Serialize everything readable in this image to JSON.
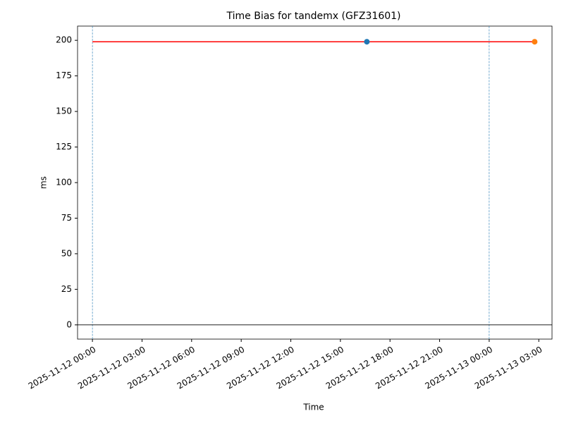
{
  "chart_data": {
    "type": "line",
    "title": "Time Bias for tandemx (GFZ31601)",
    "x_label": "Time",
    "y_label": "ms",
    "series": [
      {
        "color": "#ff0000",
        "marker": false,
        "x": [
          "2025-11-12 00:00",
          "2025-11-13 02:45"
        ],
        "values": [
          199,
          199
        ]
      },
      {
        "color": "#1f77b4",
        "marker": true,
        "x": [
          "2025-11-12 16:36"
        ],
        "values": [
          199
        ]
      },
      {
        "color": "#ff7f0e",
        "marker": true,
        "x": [
          "2025-11-13 02:45"
        ],
        "values": [
          199
        ]
      }
    ],
    "vlines": [
      "2025-11-12 00:00",
      "2025-11-13 00:00"
    ],
    "vline_color": "#1f77b4",
    "hline": 0,
    "hline_color": "#000000",
    "xlim": [
      "2025-11-11 23:06",
      "2025-11-13 03:48"
    ],
    "xticks": [
      "2025-11-12 00:00",
      "2025-11-12 03:00",
      "2025-11-12 06:00",
      "2025-11-12 09:00",
      "2025-11-12 12:00",
      "2025-11-12 15:00",
      "2025-11-12 18:00",
      "2025-11-12 21:00",
      "2025-11-13 00:00",
      "2025-11-13 03:00"
    ],
    "ylim": [
      -10,
      210
    ],
    "yticks": [
      0,
      25,
      50,
      75,
      100,
      125,
      150,
      175,
      200
    ]
  }
}
